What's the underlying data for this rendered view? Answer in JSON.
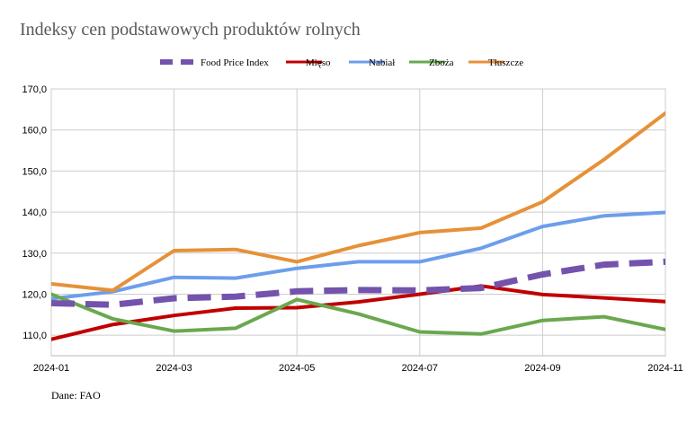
{
  "chart_data": {
    "type": "line",
    "title": "Indeksy cen podstawowych produktów rolnych",
    "source": "Dane: FAO",
    "x": [
      "2024-01",
      "2024-02",
      "2024-03",
      "2024-04",
      "2024-05",
      "2024-06",
      "2024-07",
      "2024-08",
      "2024-09",
      "2024-10",
      "2024-11"
    ],
    "x_tick_labels": [
      "2024-01",
      "2024-03",
      "2024-05",
      "2024-07",
      "2024-09",
      "2024-11"
    ],
    "ylim": [
      105,
      170
    ],
    "y_ticks": [
      110,
      120,
      130,
      140,
      150,
      160,
      170
    ],
    "y_tick_labels": [
      "110,0",
      "120,0",
      "130,0",
      "140,0",
      "150,0",
      "160,0",
      "170,0"
    ],
    "grid": true,
    "legend_position": "top",
    "series": [
      {
        "name": "Food Price Index",
        "color": "#7353ac",
        "dashed": true,
        "values": [
          117.8,
          117.4,
          119.0,
          119.4,
          120.7,
          121.0,
          120.9,
          121.5,
          124.8,
          127.2,
          127.9
        ]
      },
      {
        "name": "Mięso",
        "color": "#c00000",
        "dashed": false,
        "values": [
          109.0,
          112.6,
          114.8,
          116.6,
          116.7,
          118.1,
          120.0,
          122.0,
          119.9,
          119.1,
          118.2
        ]
      },
      {
        "name": "Nabiał",
        "color": "#6d9eeb",
        "dashed": false,
        "values": [
          118.9,
          120.6,
          124.1,
          123.9,
          126.3,
          127.9,
          127.9,
          131.2,
          136.5,
          139.1,
          139.9
        ]
      },
      {
        "name": "Zboża",
        "color": "#6aa84f",
        "dashed": false,
        "values": [
          120.0,
          114.0,
          111.0,
          111.7,
          118.7,
          115.2,
          110.8,
          110.3,
          113.6,
          114.5,
          111.4
        ]
      },
      {
        "name": "Tłuszcze",
        "color": "#e69138",
        "dashed": false,
        "values": [
          122.5,
          120.9,
          130.6,
          130.9,
          127.9,
          131.8,
          135.0,
          136.1,
          142.5,
          152.8,
          164.1
        ]
      }
    ]
  }
}
